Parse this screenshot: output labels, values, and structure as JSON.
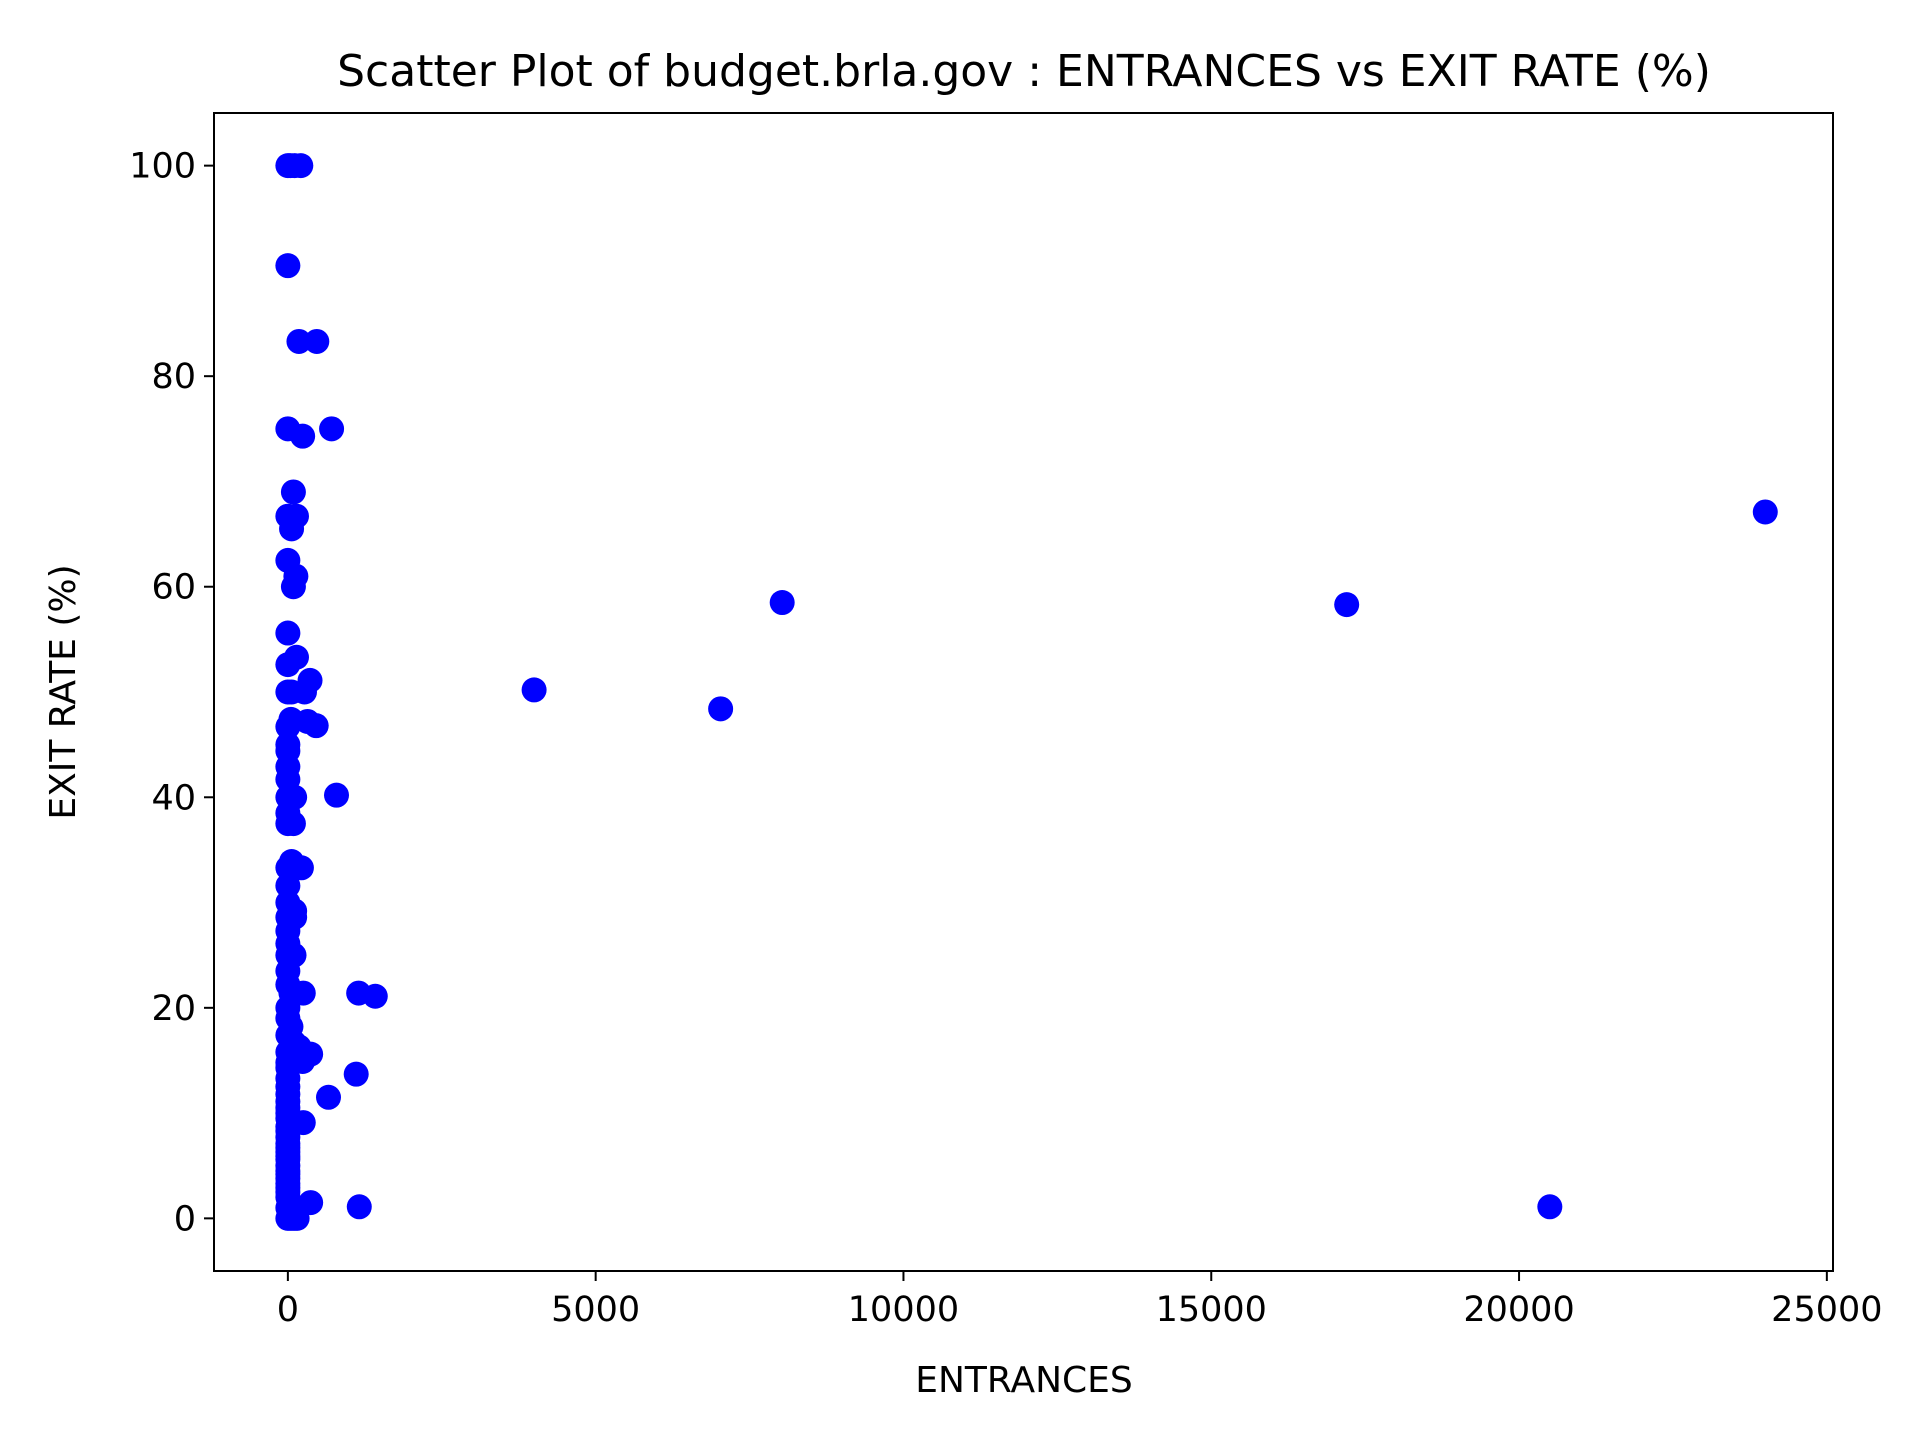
{
  "chart_data": {
    "type": "scatter",
    "title": "Scatter Plot of budget.brla.gov : ENTRANCES vs EXIT RATE (%)",
    "xlabel": "ENTRANCES",
    "ylabel": "EXIT RATE (%)",
    "xlim": [
      -1200,
      25100
    ],
    "ylim": [
      -5,
      105
    ],
    "xticks": [
      0,
      5000,
      10000,
      15000,
      20000,
      25000
    ],
    "yticks": [
      0,
      20,
      40,
      60,
      80,
      100
    ],
    "grid": false,
    "legend": "none",
    "marker_color": "#0000ff",
    "points": [
      {
        "x": 0,
        "y": 100
      },
      {
        "x": 40,
        "y": 100
      },
      {
        "x": 110,
        "y": 100
      },
      {
        "x": 210,
        "y": 100
      },
      {
        "x": 0,
        "y": 90.5
      },
      {
        "x": 180,
        "y": 83.3
      },
      {
        "x": 470,
        "y": 83.3
      },
      {
        "x": 0,
        "y": 75
      },
      {
        "x": 240,
        "y": 74.3
      },
      {
        "x": 710,
        "y": 75
      },
      {
        "x": 90,
        "y": 69
      },
      {
        "x": 0,
        "y": 66.7
      },
      {
        "x": 140,
        "y": 66.7
      },
      {
        "x": 60,
        "y": 65.5
      },
      {
        "x": 0,
        "y": 62.5
      },
      {
        "x": 130,
        "y": 61
      },
      {
        "x": 90,
        "y": 60
      },
      {
        "x": 0,
        "y": 55.6
      },
      {
        "x": 140,
        "y": 53.3
      },
      {
        "x": 0,
        "y": 52.6
      },
      {
        "x": 360,
        "y": 51.1
      },
      {
        "x": 0,
        "y": 50
      },
      {
        "x": 60,
        "y": 50
      },
      {
        "x": 270,
        "y": 50
      },
      {
        "x": 50,
        "y": 47.4
      },
      {
        "x": 320,
        "y": 47.2
      },
      {
        "x": 460,
        "y": 46.8
      },
      {
        "x": 0,
        "y": 46.7
      },
      {
        "x": 0,
        "y": 45
      },
      {
        "x": 0,
        "y": 44.4
      },
      {
        "x": 0,
        "y": 42.9
      },
      {
        "x": 0,
        "y": 41.7
      },
      {
        "x": 0,
        "y": 40
      },
      {
        "x": 110,
        "y": 40
      },
      {
        "x": 790,
        "y": 40.2
      },
      {
        "x": 0,
        "y": 38.5
      },
      {
        "x": 0,
        "y": 37.5
      },
      {
        "x": 90,
        "y": 37.5
      },
      {
        "x": 60,
        "y": 33.9
      },
      {
        "x": 0,
        "y": 33.3
      },
      {
        "x": 220,
        "y": 33.3
      },
      {
        "x": 0,
        "y": 31.6
      },
      {
        "x": 0,
        "y": 30
      },
      {
        "x": 110,
        "y": 29.2
      },
      {
        "x": 0,
        "y": 28.6
      },
      {
        "x": 110,
        "y": 28.6
      },
      {
        "x": 0,
        "y": 27.3
      },
      {
        "x": 0,
        "y": 26.1
      },
      {
        "x": 0,
        "y": 25
      },
      {
        "x": 100,
        "y": 25
      },
      {
        "x": 0,
        "y": 23.5
      },
      {
        "x": 0,
        "y": 22.2
      },
      {
        "x": 50,
        "y": 21.4
      },
      {
        "x": 250,
        "y": 21.4
      },
      {
        "x": 1150,
        "y": 21.4
      },
      {
        "x": 1420,
        "y": 21.1
      },
      {
        "x": 0,
        "y": 20
      },
      {
        "x": 0,
        "y": 19
      },
      {
        "x": 50,
        "y": 18.2
      },
      {
        "x": 0,
        "y": 17.4
      },
      {
        "x": 100,
        "y": 16.7
      },
      {
        "x": 180,
        "y": 16.3
      },
      {
        "x": 0,
        "y": 15.8
      },
      {
        "x": 370,
        "y": 15.6
      },
      {
        "x": 0,
        "y": 14.8
      },
      {
        "x": 240,
        "y": 14.9
      },
      {
        "x": 0,
        "y": 14.3
      },
      {
        "x": 1110,
        "y": 13.7
      },
      {
        "x": 0,
        "y": 13.3
      },
      {
        "x": 0,
        "y": 12.5
      },
      {
        "x": 0,
        "y": 11.8
      },
      {
        "x": 660,
        "y": 11.5
      },
      {
        "x": 0,
        "y": 11.1
      },
      {
        "x": 0,
        "y": 10.5
      },
      {
        "x": 0,
        "y": 10
      },
      {
        "x": 0,
        "y": 9.5
      },
      {
        "x": 250,
        "y": 9.1
      },
      {
        "x": 0,
        "y": 8.7
      },
      {
        "x": 0,
        "y": 8.3
      },
      {
        "x": 0,
        "y": 7.7
      },
      {
        "x": 0,
        "y": 7.1
      },
      {
        "x": 0,
        "y": 6.7
      },
      {
        "x": 0,
        "y": 6.3
      },
      {
        "x": 0,
        "y": 5.9
      },
      {
        "x": 0,
        "y": 5.6
      },
      {
        "x": 0,
        "y": 5
      },
      {
        "x": 0,
        "y": 4.5
      },
      {
        "x": 0,
        "y": 4.2
      },
      {
        "x": 0,
        "y": 3.8
      },
      {
        "x": 0,
        "y": 3.3
      },
      {
        "x": 0,
        "y": 2.9
      },
      {
        "x": 0,
        "y": 2.5
      },
      {
        "x": 0,
        "y": 2
      },
      {
        "x": 370,
        "y": 1.5
      },
      {
        "x": 0,
        "y": 1
      },
      {
        "x": 1160,
        "y": 1.1
      },
      {
        "x": 0,
        "y": 0
      },
      {
        "x": 50,
        "y": 0
      },
      {
        "x": 100,
        "y": 0
      },
      {
        "x": 150,
        "y": 0
      },
      {
        "x": 4000,
        "y": 50.2
      },
      {
        "x": 7030,
        "y": 48.4
      },
      {
        "x": 8030,
        "y": 58.5
      },
      {
        "x": 17200,
        "y": 58.3
      },
      {
        "x": 20500,
        "y": 1.1
      },
      {
        "x": 24000,
        "y": 67.1
      }
    ]
  }
}
